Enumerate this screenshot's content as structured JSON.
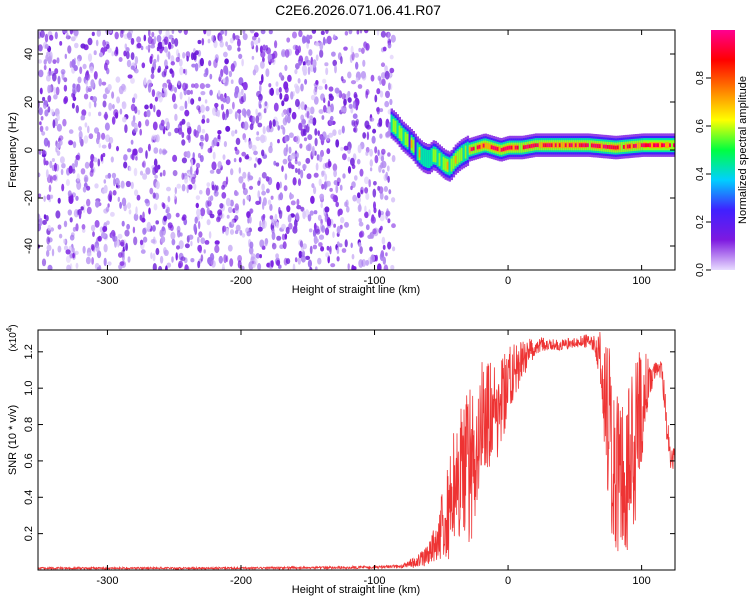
{
  "title": "C2E6.2026.071.06.41.R07",
  "chart_data": [
    {
      "type": "heatmap",
      "name": "spectrogram",
      "xlabel": "Height of straight line (km)",
      "ylabel": "Frequency (Hz)",
      "xlim": [
        -352,
        125
      ],
      "ylim": [
        -50,
        50
      ],
      "xticks": [
        -300,
        -200,
        -100,
        0,
        100
      ],
      "yticks": [
        -40,
        -20,
        0,
        20,
        40
      ],
      "noise_region_x": [
        -352,
        -90
      ],
      "signal_ridge": {
        "x": [
          -88,
          -84,
          -80,
          -76,
          -72,
          -68,
          -64,
          -60,
          -56,
          -52,
          -48,
          -44,
          -40,
          -36,
          -30,
          -24,
          -18,
          -12,
          -6,
          0,
          10,
          20,
          40,
          60,
          80,
          100,
          125
        ],
        "freq": [
          11,
          9,
          6,
          4,
          2,
          -1,
          -3,
          -4,
          -2,
          -4,
          -6,
          -7,
          -4,
          -2,
          0,
          1,
          2,
          1,
          0,
          1,
          1,
          2,
          2,
          2,
          1,
          2,
          2
        ]
      },
      "colorbar": {
        "label": "Normalized spectral amplitude",
        "range": [
          0,
          1
        ],
        "ticks": [
          "0.0",
          "0.2",
          "0.4",
          "0.6",
          "0.8"
        ],
        "tick_values": [
          0.0,
          0.2,
          0.4,
          0.6,
          0.8
        ],
        "colors": [
          "#e8dcff",
          "#7e1ae0",
          "#4020ff",
          "#00d0ff",
          "#00ff40",
          "#ffff00",
          "#ff8000",
          "#ff0000",
          "#ff0090"
        ]
      }
    },
    {
      "type": "line",
      "name": "snr",
      "xlabel": "Height of straight line (km)",
      "ylabel": "SNR (10 * v/v)",
      "multiplier": "(x10",
      "multiplier_exp": "4",
      "multiplier_close": ")",
      "xlim": [
        -352,
        125
      ],
      "ylim": [
        0,
        1.32
      ],
      "xticks": [
        -300,
        -200,
        -100,
        0,
        100
      ],
      "yticks": [
        0.2,
        0.4,
        0.6,
        0.8,
        1.0,
        1.2
      ],
      "color": "#ee3333",
      "x": [
        -352,
        -200,
        -100,
        -80,
        -70,
        -60,
        -55,
        -50,
        -45,
        -40,
        -35,
        -30,
        -25,
        -20,
        -15,
        -10,
        -5,
        0,
        5,
        10,
        15,
        20,
        25,
        30,
        40,
        50,
        60,
        65,
        70,
        72,
        75,
        78,
        80,
        85,
        90,
        95,
        100,
        105,
        110,
        115,
        118,
        120,
        122,
        125
      ],
      "y_base": [
        0.01,
        0.01,
        0.015,
        0.02,
        0.04,
        0.08,
        0.15,
        0.25,
        0.35,
        0.45,
        0.5,
        0.55,
        0.55,
        0.8,
        0.85,
        0.85,
        0.9,
        1.05,
        1.1,
        1.15,
        1.2,
        1.22,
        1.24,
        1.24,
        1.24,
        1.25,
        1.26,
        1.25,
        1.18,
        1.05,
        0.8,
        0.65,
        0.55,
        0.5,
        0.55,
        0.7,
        0.9,
        1.05,
        1.1,
        1.1,
        0.9,
        0.7,
        0.6,
        0.62
      ],
      "y_spread": [
        0.005,
        0.005,
        0.008,
        0.01,
        0.03,
        0.06,
        0.1,
        0.2,
        0.3,
        0.35,
        0.4,
        0.45,
        0.45,
        0.35,
        0.3,
        0.28,
        0.25,
        0.18,
        0.15,
        0.12,
        0.08,
        0.05,
        0.04,
        0.03,
        0.03,
        0.03,
        0.04,
        0.05,
        0.2,
        0.35,
        0.45,
        0.5,
        0.45,
        0.4,
        0.45,
        0.45,
        0.35,
        0.12,
        0.05,
        0.05,
        0.15,
        0.1,
        0.06,
        0.05
      ]
    }
  ]
}
